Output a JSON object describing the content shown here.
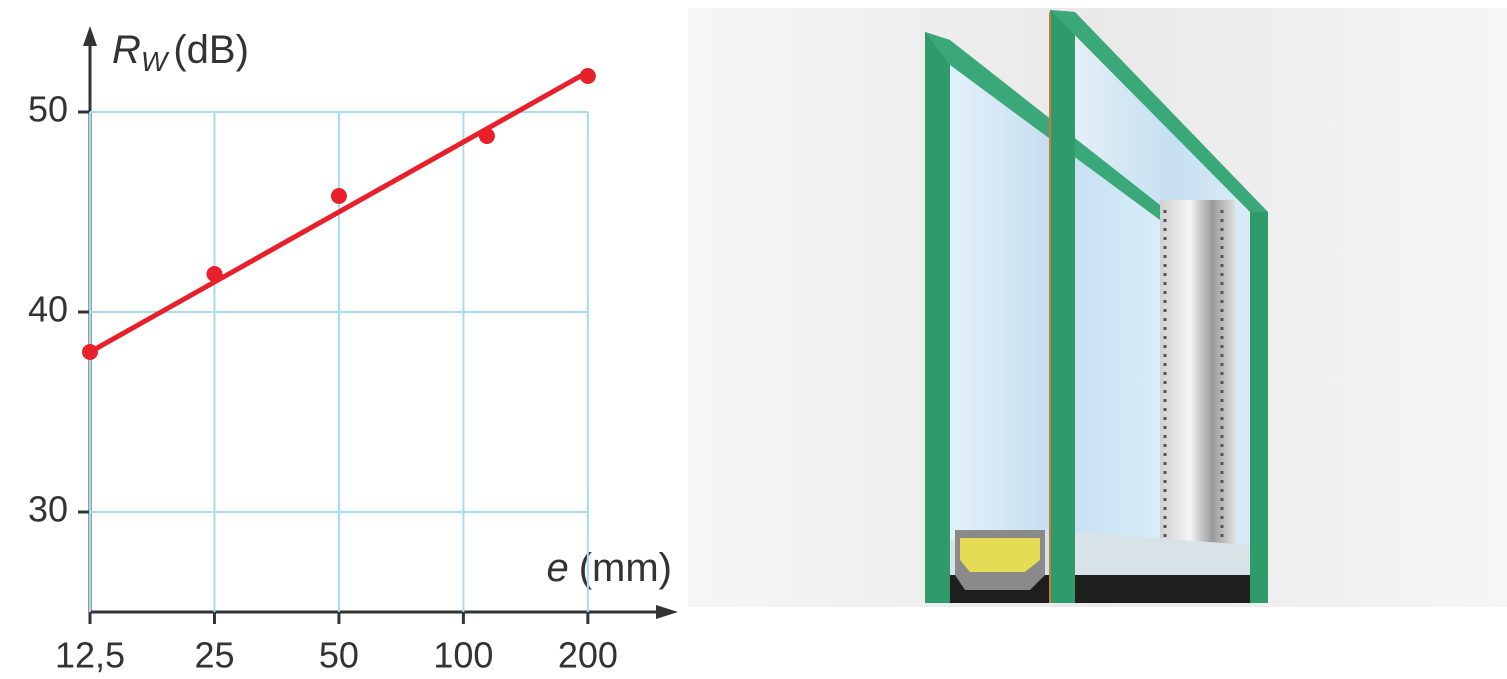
{
  "chart_data": {
    "type": "scatter",
    "y_label": {
      "symbol": "R",
      "subscript": "W",
      "unit": "(dB)"
    },
    "x_label": {
      "symbol": "e",
      "unit": "(mm)"
    },
    "x": [
      12.5,
      25,
      50,
      114,
      200
    ],
    "values": [
      38,
      41.9,
      45.8,
      48.8,
      51.8
    ],
    "color": "#e8202a",
    "trend": {
      "x": [
        12.5,
        200
      ],
      "values": [
        38,
        52
      ],
      "color": "#e8202a"
    },
    "xscale": "log",
    "xlim": [
      12.5,
      316
    ],
    "ylim": [
      25,
      54
    ],
    "xticks": [
      {
        "value": 12.5,
        "label": "12,5"
      },
      25,
      50,
      100,
      200
    ],
    "yticks": [
      30,
      40,
      50
    ],
    "grid": true,
    "grid_color": "#a8dcf0"
  }
}
